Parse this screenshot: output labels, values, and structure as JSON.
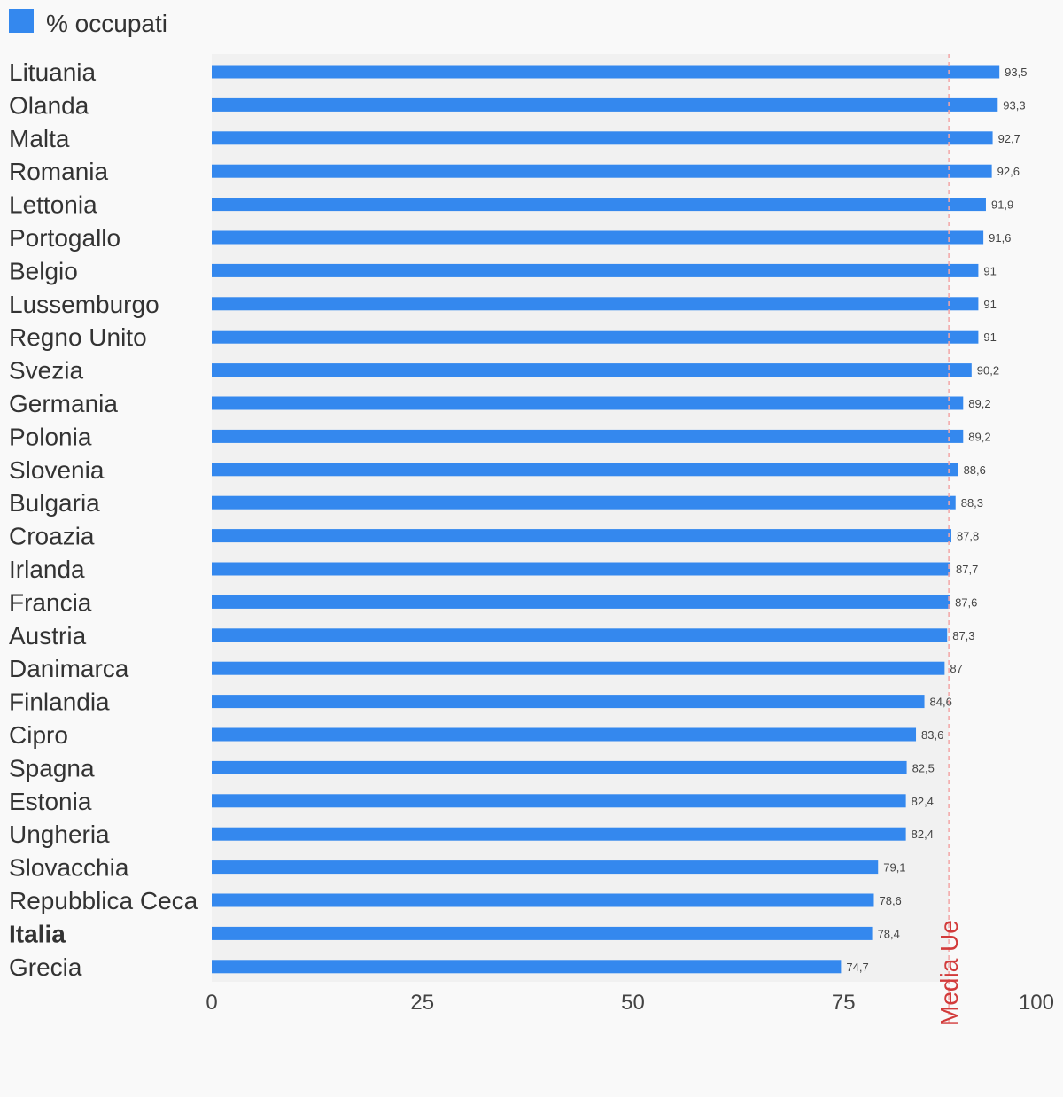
{
  "chart_data": {
    "type": "bar",
    "orientation": "horizontal",
    "legend": {
      "label": "% occupati",
      "color": "#3488ee",
      "position": "top-left"
    },
    "categories": [
      "Lituania",
      "Olanda",
      "Malta",
      "Romania",
      "Lettonia",
      "Portogallo",
      "Belgio",
      "Lussemburgo",
      "Regno Unito",
      "Svezia",
      "Germania",
      "Polonia",
      "Slovenia",
      "Bulgaria",
      "Croazia",
      "Irlanda",
      "Francia",
      "Austria",
      "Danimarca",
      "Finlandia",
      "Cipro",
      "Spagna",
      "Estonia",
      "Ungheria",
      "Slovacchia",
      "Repubblica Ceca",
      "Italia",
      "Grecia"
    ],
    "highlighted_category": "Italia",
    "series": [
      {
        "name": "% occupati",
        "color": "#3488ee",
        "values": [
          93.5,
          93.3,
          92.7,
          92.6,
          91.9,
          91.6,
          91,
          91,
          91,
          90.2,
          89.2,
          89.2,
          88.6,
          88.3,
          87.8,
          87.7,
          87.6,
          87.3,
          87,
          84.6,
          83.6,
          82.5,
          82.4,
          82.4,
          79.1,
          78.6,
          78.4,
          74.7
        ],
        "value_labels": [
          "93,5",
          "93,3",
          "92,7",
          "92,6",
          "91,9",
          "91,6",
          "91",
          "91",
          "91",
          "90,2",
          "89,2",
          "89,2",
          "88,6",
          "88,3",
          "87,8",
          "87,7",
          "87,6",
          "87,3",
          "87",
          "84,6",
          "83,6",
          "82,5",
          "82,4",
          "82,4",
          "79,1",
          "78,6",
          "78,4",
          "74,7"
        ]
      }
    ],
    "xlim": [
      0,
      100
    ],
    "xticks": [
      0,
      25,
      50,
      75,
      100
    ],
    "xtick_labels": [
      "0",
      "25",
      "50",
      "75",
      "100"
    ],
    "reference_line": {
      "label": "Media Ue",
      "value": 87.5,
      "color": "#f4a5a5",
      "label_color": "#d23b3b",
      "style": "dashed"
    },
    "plot_background": "#f1f1f1",
    "grid": false
  }
}
